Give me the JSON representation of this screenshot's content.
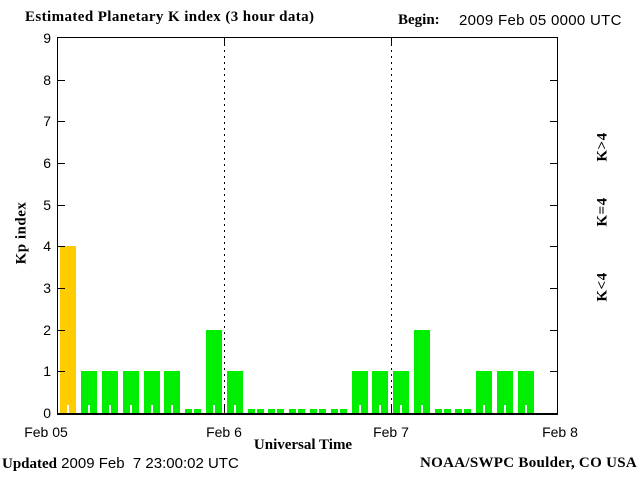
{
  "title": "Estimated Planetary K index (3 hour data)",
  "begin": {
    "label": "Begin:",
    "value": "2009 Feb 05 0000 UTC"
  },
  "chart_data": {
    "type": "bar",
    "title": "Estimated Planetary K index (3 hour data)",
    "ylabel": "Kp index",
    "xlabel": "Universal Time",
    "ylim": [
      0,
      9
    ],
    "y_ticks": [
      0,
      1,
      2,
      3,
      4,
      5,
      6,
      7,
      8,
      9
    ],
    "bin_hours": 3,
    "grid": "day-boundary dotted verticals",
    "x_day_labels": [
      "Feb 05",
      "Feb 6",
      "Feb 7",
      "Feb 8"
    ],
    "series": [
      {
        "day": "Feb 05",
        "kp": [
          4,
          1,
          1,
          1,
          1,
          1,
          0,
          2
        ]
      },
      {
        "day": "Feb 6",
        "kp": [
          1,
          0,
          0,
          0,
          0,
          0,
          1,
          1
        ]
      },
      {
        "day": "Feb 7",
        "kp": [
          1,
          2,
          0,
          0,
          1,
          1,
          1
        ]
      }
    ],
    "color_rules": {
      "gt4": "#ff2000",
      "eq4": "#ffcc00",
      "lt4": "#00ee00"
    }
  },
  "legend": {
    "items": [
      {
        "label": "K>4",
        "color": "#ff2000"
      },
      {
        "label": "K=4",
        "color": "#ffcc00"
      },
      {
        "label": "K<4",
        "color": "#00ee00"
      }
    ]
  },
  "footer": {
    "updated_label": "Updated",
    "updated_value": " 2009 Feb  7 23:00:02 UTC",
    "credit": "NOAA/SWPC Boulder, CO USA"
  }
}
